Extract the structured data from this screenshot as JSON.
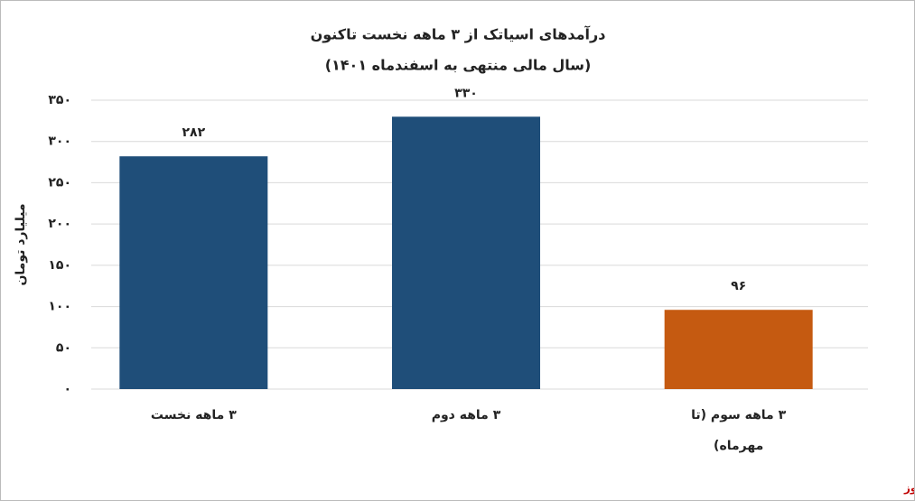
{
  "chart_data": {
    "type": "bar",
    "title": "درآمدهای اسیاتک از ۳ ماهه نخست تاکنون",
    "subtitle": "(سال مالی منتهی به اسفندماه ۱۴۰۱)",
    "y_label": "میلیارد تومان",
    "source": "بورس نیوز",
    "categories": [
      "۳ ماهه نخست",
      "۳ ماهه دوم",
      "۳ ماهه سوم (تا مهرماه)"
    ],
    "values": [
      282,
      330,
      96
    ],
    "value_labels": [
      "۲۸۲",
      "۳۳۰",
      "۹۶"
    ],
    "colors": [
      "#1f4e79",
      "#1f4e79",
      "#c55a11"
    ],
    "ylim": [
      0,
      350
    ],
    "yticks": [
      {
        "value": 0,
        "label": "۰"
      },
      {
        "value": 50,
        "label": "۵۰"
      },
      {
        "value": 100,
        "label": "۱۰۰"
      },
      {
        "value": 150,
        "label": "۱۵۰"
      },
      {
        "value": 200,
        "label": "۲۰۰"
      },
      {
        "value": 250,
        "label": "۲۵۰"
      },
      {
        "value": 300,
        "label": "۳۰۰"
      },
      {
        "value": 350,
        "label": "۳۵۰"
      }
    ],
    "grid": true
  }
}
